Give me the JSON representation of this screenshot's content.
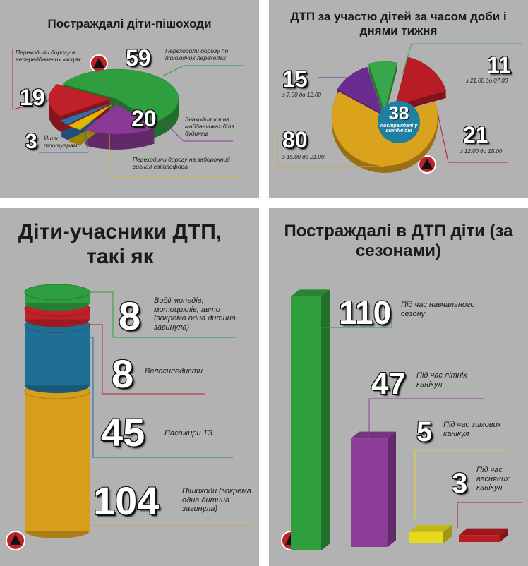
{
  "chart_data": [
    {
      "type": "pie",
      "title": "Постраждалі діти-пішоходи",
      "categories": [
        "Переходили дорогу по пішохідних переходах",
        "Знаходилися на майданчиках біля будинків",
        "Переходили дорогу на заборонний сигнал світлофора",
        "Йшли тротуарами",
        "Переходили дорогу в непередбачених місцях"
      ],
      "values": [
        59,
        20,
        4,
        3,
        19
      ],
      "colors": [
        "#2e9e3e",
        "#8a3a96",
        "#e0b800",
        "#2f6fb0",
        "#c0202a"
      ]
    },
    {
      "type": "pie",
      "title": "ДТП за участю дітей за часом доби і днями тижня",
      "categories": [
        "з 7.00 до 12.00",
        "з 21.00 до 07.00",
        "з 12.00 до 15.00",
        "з 15.00 до 21.00"
      ],
      "values": [
        15,
        11,
        21,
        80
      ],
      "colors": [
        "#6a2c8e",
        "#3aa84a",
        "#b81c24",
        "#dba21c"
      ],
      "center": {
        "value": 38,
        "label": "постраждалі у вихідні дні",
        "color": "#1f7fa0"
      }
    },
    {
      "type": "stacked-bar",
      "title": "Діти-учасники ДТП, такі як",
      "categories": [
        "Водії мопедів, мотоциклів, авто (зокрема одна дитина загинула)",
        "Велосипедисти",
        "Пасажири ТЗ",
        "Пішоходи (зокрема одна дитина загинула)"
      ],
      "values": [
        8,
        8,
        45,
        104
      ],
      "colors": [
        "#2f9e40",
        "#c0202a",
        "#1f6f95",
        "#d79e1c"
      ]
    },
    {
      "type": "bar",
      "title": "Постраждалі в ДТП діти (за сезонами)",
      "categories": [
        "Під час навчального сезону",
        "Під час літніх канікул",
        "Під час зимових канікул",
        "Під час весняних канікул"
      ],
      "values": [
        110,
        47,
        5,
        3
      ],
      "colors": [
        "#2f9e3c",
        "#8a3c96",
        "#e6d81c",
        "#b81c20"
      ]
    }
  ]
}
